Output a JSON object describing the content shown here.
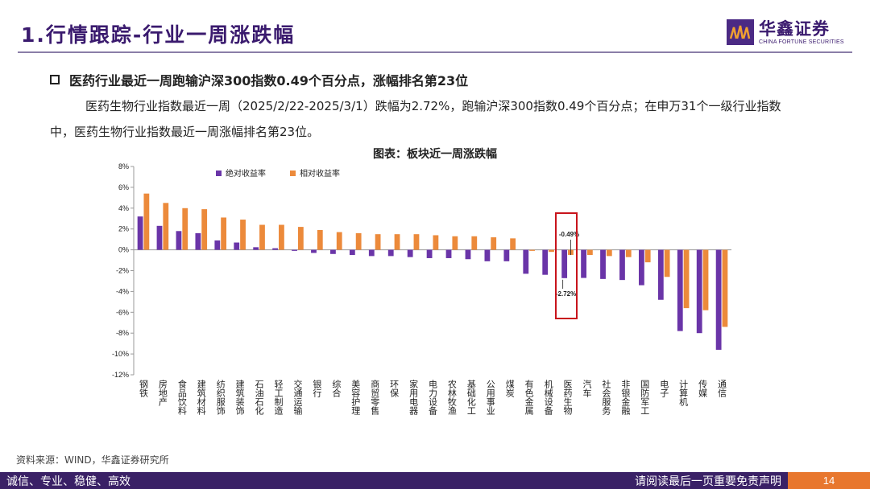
{
  "header": {
    "title": "1.行情跟踪-行业一周涨跌幅",
    "logo_text": "华鑫证券",
    "logo_subtext": "CHINA FORTUNE SECURITIES"
  },
  "summary": {
    "bullet": "医药行业最近一周跑输沪深300指数0.49个百分点，涨幅排名第23位",
    "paragraph": "医药生物行业指数最近一周（2025/2/22-2025/3/1）跌幅为2.72%，跑输沪深300指数0.49个百分点；在申万31个一级行业指数中，医药生物行业指数最近一周涨幅排名第23位。"
  },
  "chart_title": "图表：板块近一周涨跌幅",
  "chart_data": {
    "type": "bar",
    "title": "图表：板块近一周涨跌幅",
    "categories": [
      "钢铁",
      "房地产",
      "食品饮料",
      "建筑材料",
      "纺织服饰",
      "建筑装饰",
      "石油石化",
      "轻工制造",
      "交通运输",
      "银行",
      "综合",
      "美容护理",
      "商贸零售",
      "环保",
      "家用电器",
      "电力设备",
      "农林牧渔",
      "基础化工",
      "公用事业",
      "煤炭",
      "有色金属",
      "机械设备",
      "医药生物",
      "汽车",
      "社会服务",
      "非银金融",
      "国防军工",
      "电子",
      "计算机",
      "传媒",
      "通信"
    ],
    "series": [
      {
        "name": "绝对收益率",
        "color": "#6a35a8",
        "values": [
          3.2,
          2.3,
          1.8,
          1.6,
          0.9,
          0.7,
          0.25,
          0.15,
          -0.1,
          -0.3,
          -0.4,
          -0.5,
          -0.6,
          -0.6,
          -0.7,
          -0.8,
          -0.8,
          -0.9,
          -1.1,
          -1.1,
          -2.3,
          -2.4,
          -2.72,
          -2.7,
          -2.8,
          -2.9,
          -3.4,
          -4.8,
          -7.8,
          -8.0,
          -9.6
        ]
      },
      {
        "name": "相对收益率",
        "color": "#ec8a3b",
        "values": [
          5.4,
          4.5,
          4.0,
          3.9,
          3.1,
          2.9,
          2.4,
          2.4,
          2.2,
          1.9,
          1.7,
          1.6,
          1.5,
          1.5,
          1.5,
          1.4,
          1.3,
          1.3,
          1.2,
          1.1,
          -0.1,
          -0.2,
          -0.49,
          -0.5,
          -0.6,
          -0.7,
          -1.2,
          -2.6,
          -5.6,
          -5.8,
          -7.4
        ]
      }
    ],
    "ylim": [
      -12,
      8
    ],
    "yticks": [
      "8%",
      "6%",
      "4%",
      "2%",
      "0%",
      "-2%",
      "-4%",
      "-6%",
      "-8%",
      "-10%",
      "-12%"
    ],
    "ytick_values": [
      8,
      6,
      4,
      2,
      0,
      -2,
      -4,
      -6,
      -8,
      -10,
      -12
    ],
    "annotations": [
      {
        "category": "医药生物",
        "series": "相对收益率",
        "label": "-0.49%"
      },
      {
        "category": "医药生物",
        "series": "绝对收益率",
        "label": "-2.72%"
      }
    ],
    "highlight_category": "医药生物",
    "legend_position": "top-left",
    "grid": false
  },
  "source": "资料来源：WIND，华鑫证券研究所",
  "footer": {
    "left": "诚信、专业、稳健、高效",
    "right": "请阅读最后一页重要免责声明",
    "page": "14"
  }
}
